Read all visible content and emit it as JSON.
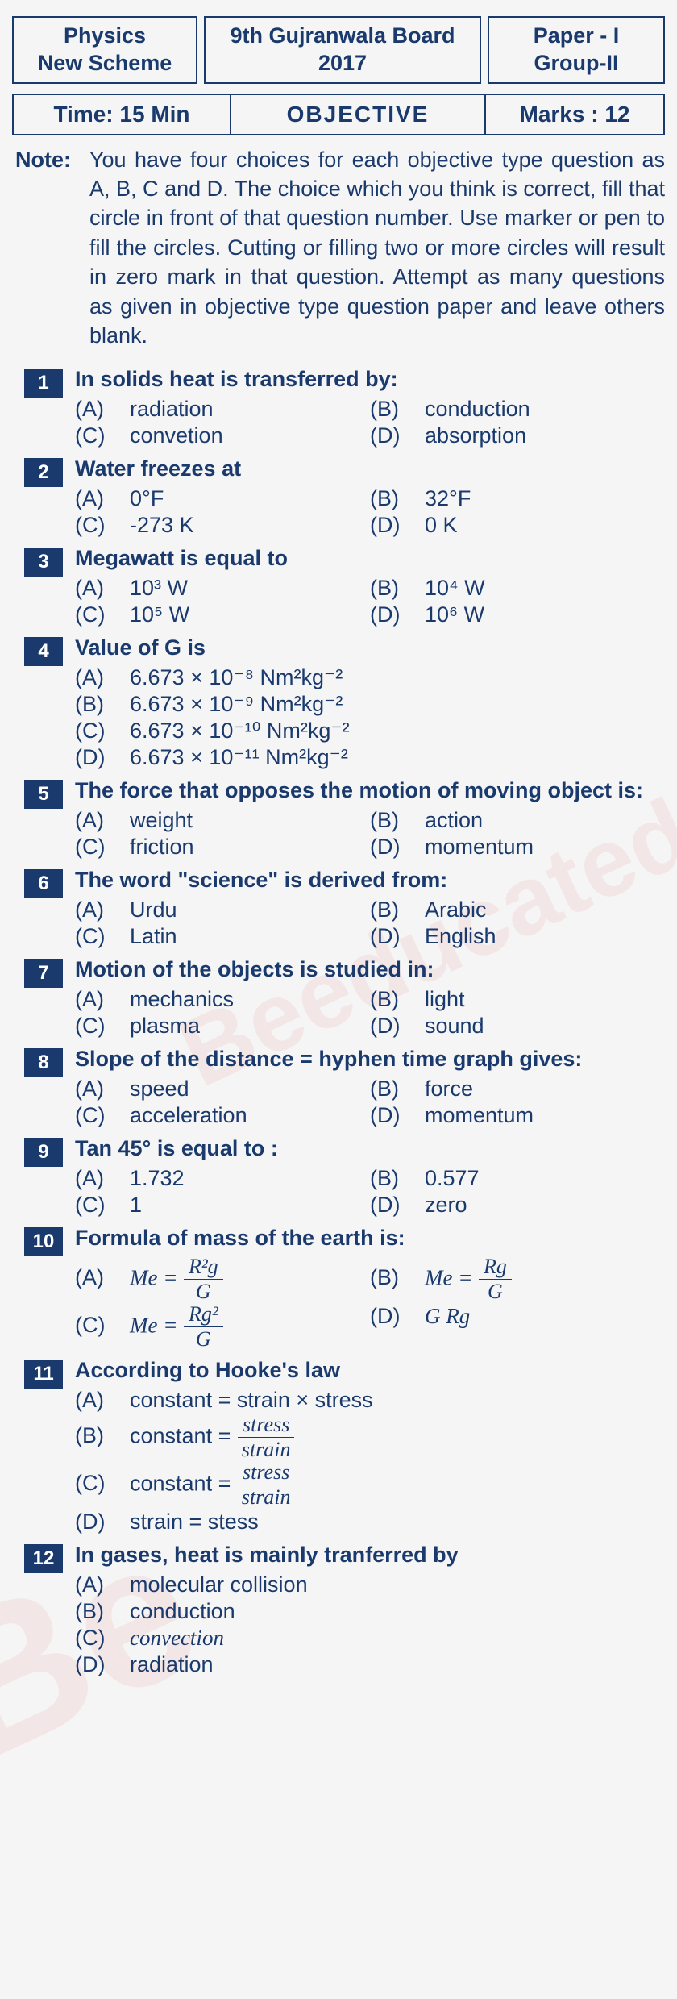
{
  "header": {
    "subject": "Physics",
    "scheme": "New Scheme",
    "board": "9th Gujranwala Board 2017",
    "paper": "Paper - I",
    "group": "Group-II"
  },
  "subheader": {
    "time": "Time: 15 Min",
    "type": "OBJECTIVE",
    "marks": "Marks : 12"
  },
  "note": {
    "label": "Note:",
    "text": "You have four choices for each objective type question as A, B, C and D. The choice which you think is correct, fill that circle in front of that question number. Use marker or pen to fill the circles. Cutting or filling two or more circles will result in zero mark in that question. Attempt as many questions as given in objective type question paper and leave others blank."
  },
  "questions": [
    {
      "n": "1",
      "q": "In solids heat is transferred by:",
      "opts": [
        {
          "l": "(A)",
          "t": "radiation",
          "w": "half"
        },
        {
          "l": "(B)",
          "t": "conduction",
          "w": "half"
        },
        {
          "l": "(C)",
          "t": "convetion",
          "w": "half"
        },
        {
          "l": "(D)",
          "t": "absorption",
          "w": "half"
        }
      ]
    },
    {
      "n": "2",
      "q": "Water freezes at",
      "opts": [
        {
          "l": "(A)",
          "t": "0°F",
          "w": "half"
        },
        {
          "l": "(B)",
          "t": "32°F",
          "w": "half"
        },
        {
          "l": "(C)",
          "t": "-273 K",
          "w": "half"
        },
        {
          "l": "(D)",
          "t": "0 K",
          "w": "half"
        }
      ]
    },
    {
      "n": "3",
      "q": "Megawatt is equal to",
      "opts": [
        {
          "l": "(A)",
          "t": "10³ W",
          "w": "half"
        },
        {
          "l": "(B)",
          "t": "10⁴ W",
          "w": "half"
        },
        {
          "l": "(C)",
          "t": "10⁵ W",
          "w": "half"
        },
        {
          "l": "(D)",
          "t": "10⁶ W",
          "w": "half"
        }
      ]
    },
    {
      "n": "4",
      "q": "Value of G is",
      "opts": [
        {
          "l": "(A)",
          "t": "6.673 × 10⁻⁸ Nm²kg⁻²",
          "w": "full"
        },
        {
          "l": "(B)",
          "t": "6.673 × 10⁻⁹ Nm²kg⁻²",
          "w": "full"
        },
        {
          "l": "(C)",
          "t": "6.673 × 10⁻¹⁰ Nm²kg⁻²",
          "w": "full"
        },
        {
          "l": "(D)",
          "t": "6.673 × 10⁻¹¹ Nm²kg⁻²",
          "w": "full"
        }
      ]
    },
    {
      "n": "5",
      "q": "The force that opposes the motion of moving object is:",
      "opts": [
        {
          "l": "(A)",
          "t": "weight",
          "w": "half"
        },
        {
          "l": "(B)",
          "t": "action",
          "w": "half"
        },
        {
          "l": "(C)",
          "t": "friction",
          "w": "half"
        },
        {
          "l": "(D)",
          "t": "momentum",
          "w": "half"
        }
      ]
    },
    {
      "n": "6",
      "q": "The word \"science\" is derived from:",
      "opts": [
        {
          "l": "(A)",
          "t": "Urdu",
          "w": "half"
        },
        {
          "l": "(B)",
          "t": "Arabic",
          "w": "half"
        },
        {
          "l": "(C)",
          "t": "Latin",
          "w": "half"
        },
        {
          "l": "(D)",
          "t": "English",
          "w": "half"
        }
      ]
    },
    {
      "n": "7",
      "q": "Motion of the objects is studied in:",
      "opts": [
        {
          "l": "(A)",
          "t": "mechanics",
          "w": "half"
        },
        {
          "l": "(B)",
          "t": "light",
          "w": "half"
        },
        {
          "l": "(C)",
          "t": "plasma",
          "w": "half"
        },
        {
          "l": "(D)",
          "t": "sound",
          "w": "half"
        }
      ]
    },
    {
      "n": "8",
      "q": "Slope of the distance = hyphen time graph gives:",
      "opts": [
        {
          "l": "(A)",
          "t": "speed",
          "w": "half"
        },
        {
          "l": "(B)",
          "t": "force",
          "w": "half"
        },
        {
          "l": "(C)",
          "t": "acceleration",
          "w": "half"
        },
        {
          "l": "(D)",
          "t": "momentum",
          "w": "half"
        }
      ]
    },
    {
      "n": "9",
      "q": "Tan 45° is equal to :",
      "opts": [
        {
          "l": "(A)",
          "t": "1.732",
          "w": "half"
        },
        {
          "l": "(B)",
          "t": "0.577",
          "w": "half"
        },
        {
          "l": "(C)",
          "t": "1",
          "w": "half"
        },
        {
          "l": "(D)",
          "t": "zero",
          "w": "half"
        }
      ]
    },
    {
      "n": "10",
      "q": "Formula of mass of the earth is:",
      "special": "q10"
    },
    {
      "n": "11",
      "q": "According to Hooke's law",
      "special": "q11"
    },
    {
      "n": "12",
      "q": "In gases, heat is mainly tranferred by",
      "opts": [
        {
          "l": "(A)",
          "t": "molecular collision",
          "w": "full"
        },
        {
          "l": "(B)",
          "t": "conduction",
          "w": "full"
        },
        {
          "l": "(C)",
          "t": "convection",
          "w": "full",
          "italic": true
        },
        {
          "l": "(D)",
          "t": "radiation",
          "w": "full"
        }
      ]
    }
  ],
  "q10": {
    "A_label": "(A)",
    "A_lhs": "Me =",
    "A_num": "R²g",
    "A_den": "G",
    "B_label": "(B)",
    "B_lhs": "Me =",
    "B_num": "Rg",
    "B_den": "G",
    "C_label": "(C)",
    "C_lhs": "Me =",
    "C_num": "Rg²",
    "C_den": "G",
    "D_label": "(D)",
    "D_text": "G Rg"
  },
  "q11": {
    "A_label": "(A)",
    "A_text": "constant = strain × stress",
    "B_label": "(B)",
    "B_lhs": "constant =",
    "B_num": "stress",
    "B_den": "strain",
    "C_label": "(C)",
    "C_lhs": "constant =",
    "C_num": "stress",
    "C_den": "strain",
    "D_label": "(D)",
    "D_text": "strain = stess"
  },
  "colors": {
    "primary": "#1a3a6e",
    "bg": "#f5f5f5",
    "qnum_bg": "#1a3a6e",
    "qnum_fg": "#ffffff"
  }
}
